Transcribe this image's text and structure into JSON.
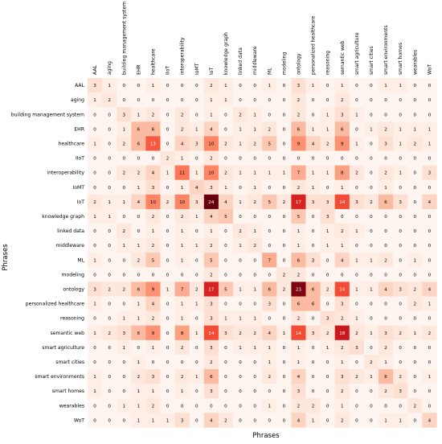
{
  "chart_data": {
    "type": "heatmap",
    "xlabel": "Phrases",
    "ylabel": "Phrases",
    "colormap": "Reds",
    "color_range": [
      0,
      24
    ],
    "labels": [
      "AAL",
      "aging",
      "building management system",
      "EHR",
      "healthcare",
      "IIoT",
      "interoperability",
      "IoMT",
      "IoT",
      "knowledge graph",
      "linked data",
      "middleware",
      "ML",
      "modeling",
      "ontology",
      "personalized healthcare",
      "reasoning",
      "semantic web",
      "smart agriculture",
      "smart cities",
      "smart environments",
      "smart homes",
      "wearables",
      "WoT"
    ],
    "matrix": [
      [
        3,
        1,
        0,
        0,
        1,
        0,
        0,
        0,
        2,
        1,
        0,
        0,
        1,
        0,
        3,
        1,
        0,
        1,
        0,
        0,
        1,
        1,
        0,
        0
      ],
      [
        1,
        2,
        0,
        0,
        0,
        0,
        0,
        0,
        1,
        1,
        0,
        0,
        0,
        0,
        2,
        0,
        0,
        2,
        0,
        0,
        0,
        0,
        0,
        0
      ],
      [
        0,
        0,
        3,
        1,
        2,
        0,
        2,
        0,
        1,
        0,
        2,
        1,
        0,
        0,
        2,
        0,
        1,
        3,
        1,
        0,
        0,
        0,
        0,
        0
      ],
      [
        0,
        0,
        1,
        6,
        6,
        0,
        2,
        1,
        4,
        0,
        1,
        1,
        2,
        0,
        6,
        1,
        1,
        6,
        0,
        1,
        2,
        1,
        1,
        1
      ],
      [
        1,
        0,
        2,
        6,
        13,
        0,
        4,
        3,
        10,
        2,
        1,
        2,
        5,
        0,
        9,
        4,
        2,
        9,
        1,
        0,
        3,
        1,
        2,
        1
      ],
      [
        0,
        0,
        0,
        0,
        0,
        2,
        1,
        0,
        2,
        0,
        0,
        0,
        0,
        0,
        0,
        0,
        0,
        0,
        0,
        0,
        0,
        0,
        0,
        0
      ],
      [
        0,
        0,
        2,
        2,
        4,
        1,
        11,
        1,
        10,
        2,
        1,
        1,
        1,
        1,
        7,
        1,
        1,
        8,
        2,
        0,
        2,
        1,
        0,
        3
      ],
      [
        0,
        0,
        0,
        1,
        3,
        0,
        1,
        4,
        3,
        1,
        0,
        1,
        0,
        0,
        2,
        1,
        0,
        1,
        0,
        0,
        1,
        0,
        0,
        0
      ],
      [
        2,
        1,
        1,
        4,
        10,
        2,
        10,
        3,
        24,
        4,
        1,
        2,
        5,
        2,
        17,
        3,
        3,
        14,
        3,
        2,
        6,
        3,
        0,
        4
      ],
      [
        1,
        1,
        0,
        0,
        2,
        0,
        2,
        1,
        4,
        5,
        0,
        0,
        0,
        0,
        5,
        0,
        3,
        0,
        0,
        0,
        0,
        0,
        0,
        0
      ],
      [
        0,
        0,
        2,
        0,
        1,
        0,
        1,
        0,
        1,
        0,
        2,
        1,
        0,
        0,
        1,
        0,
        1,
        2,
        1,
        0,
        0,
        0,
        0,
        0
      ],
      [
        0,
        0,
        1,
        1,
        2,
        0,
        1,
        1,
        2,
        0,
        1,
        2,
        0,
        0,
        1,
        0,
        1,
        1,
        0,
        0,
        0,
        0,
        0,
        0
      ],
      [
        1,
        0,
        0,
        2,
        5,
        0,
        1,
        0,
        5,
        0,
        0,
        0,
        7,
        0,
        6,
        3,
        0,
        4,
        1,
        1,
        2,
        0,
        1,
        0
      ],
      [
        0,
        0,
        0,
        0,
        0,
        0,
        0,
        0,
        2,
        0,
        0,
        0,
        0,
        2,
        2,
        0,
        0,
        0,
        0,
        0,
        0,
        0,
        0,
        0
      ],
      [
        3,
        2,
        2,
        6,
        9,
        1,
        7,
        2,
        17,
        5,
        1,
        1,
        6,
        2,
        23,
        6,
        2,
        14,
        1,
        1,
        4,
        3,
        2,
        4
      ],
      [
        1,
        0,
        0,
        1,
        4,
        0,
        1,
        1,
        3,
        0,
        0,
        0,
        3,
        0,
        6,
        6,
        0,
        3,
        0,
        0,
        0,
        0,
        2,
        1
      ],
      [
        0,
        0,
        1,
        1,
        2,
        0,
        1,
        0,
        3,
        1,
        1,
        1,
        0,
        0,
        2,
        0,
        3,
        2,
        1,
        0,
        0,
        0,
        0,
        0
      ],
      [
        1,
        2,
        3,
        6,
        9,
        0,
        8,
        1,
        14,
        3,
        2,
        2,
        4,
        1,
        14,
        3,
        2,
        18,
        2,
        1,
        3,
        2,
        1,
        2
      ],
      [
        0,
        0,
        1,
        0,
        1,
        0,
        2,
        0,
        3,
        0,
        1,
        1,
        1,
        0,
        1,
        0,
        1,
        2,
        3,
        0,
        2,
        0,
        0,
        0
      ],
      [
        0,
        0,
        0,
        1,
        0,
        0,
        0,
        0,
        2,
        0,
        0,
        0,
        1,
        0,
        1,
        0,
        0,
        1,
        0,
        2,
        1,
        0,
        0,
        0
      ],
      [
        1,
        0,
        0,
        2,
        3,
        0,
        2,
        1,
        6,
        0,
        0,
        0,
        2,
        0,
        4,
        0,
        0,
        3,
        2,
        1,
        6,
        2,
        0,
        1
      ],
      [
        1,
        0,
        0,
        1,
        1,
        0,
        1,
        0,
        3,
        0,
        0,
        0,
        0,
        0,
        3,
        0,
        0,
        2,
        0,
        0,
        2,
        3,
        0,
        0
      ],
      [
        0,
        0,
        1,
        1,
        2,
        0,
        0,
        0,
        0,
        0,
        0,
        0,
        1,
        0,
        2,
        2,
        0,
        1,
        0,
        0,
        0,
        0,
        2,
        0
      ],
      [
        0,
        0,
        0,
        1,
        1,
        1,
        3,
        0,
        4,
        2,
        0,
        0,
        0,
        0,
        4,
        1,
        0,
        2,
        0,
        0,
        1,
        1,
        0,
        4
      ]
    ]
  }
}
